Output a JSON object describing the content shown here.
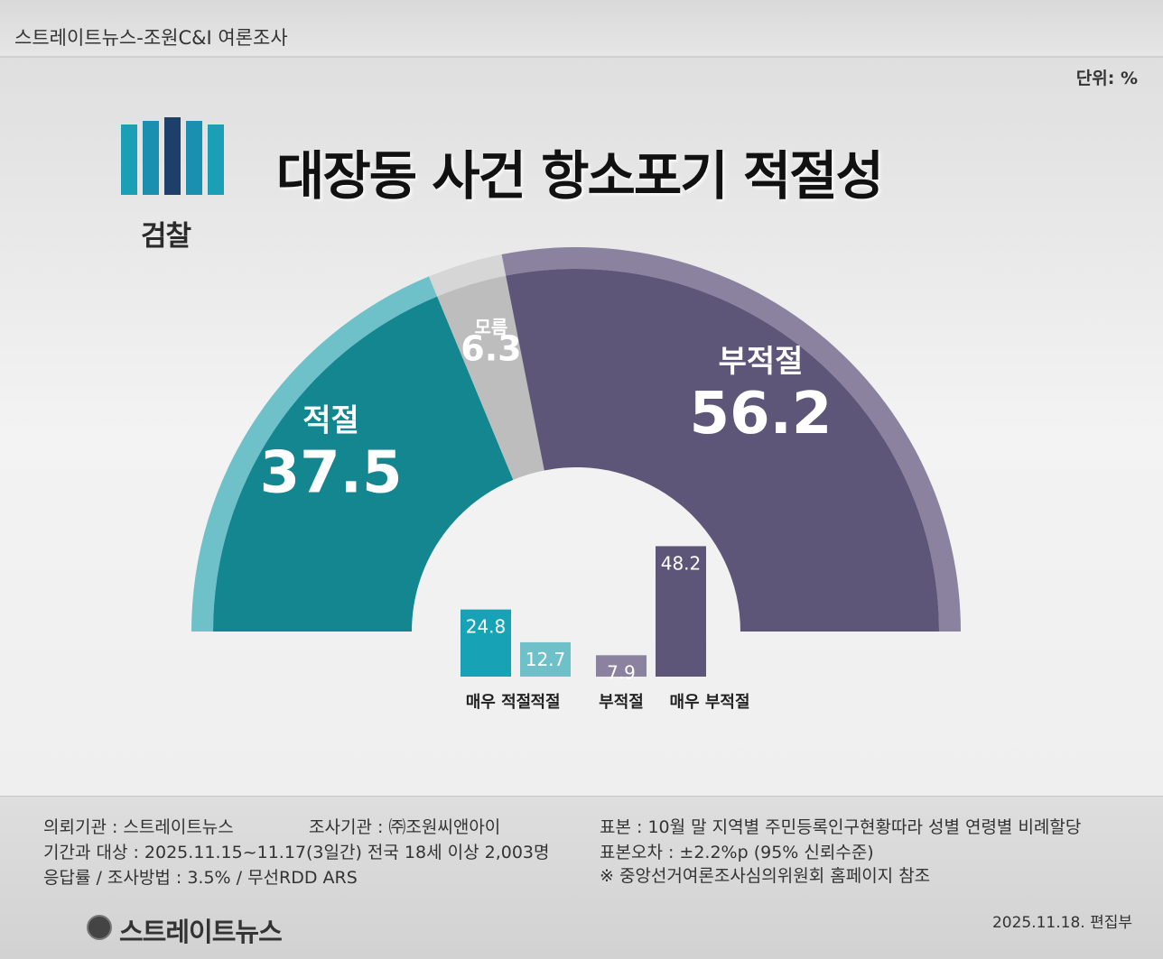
{
  "header": {
    "source": "스트레이트뉴스-조원C&I 여론조사",
    "unit": "단위: %"
  },
  "logo": {
    "text": "검찰"
  },
  "title": "대장동 사건 항소포기 적절성",
  "chart_data": [
    {
      "type": "pie",
      "layout": "half-donut",
      "slices": [
        {
          "label": "적절",
          "value": 37.5,
          "color": "#138690",
          "outer_color": "#6ec1c9"
        },
        {
          "label": "모름",
          "value": 6.3,
          "color": "#bdbdbd",
          "outer_color": "#d6d6d6"
        },
        {
          "label": "부적절",
          "value": 56.2,
          "color": "#5e5678",
          "outer_color": "#8a829f"
        }
      ]
    },
    {
      "type": "bar",
      "categories": [
        "매우 적절",
        "적절",
        "부적절",
        "매우 부적절"
      ],
      "values": [
        24.8,
        12.7,
        7.9,
        48.2
      ],
      "colors": [
        "#17a2b5",
        "#6ec1c9",
        "#8a829f",
        "#5e5678"
      ]
    }
  ],
  "footer": {
    "client": "의뢰기관 : 스트레이트뉴스",
    "agency": "조사기관 : ㈜조원씨앤아이",
    "period": "기간과 대상 : 2025.11.15~11.17(3일간)   전국 18세 이상  2,003명",
    "response": "응답률 / 조사방법 : 3.5% / 무선RDD ARS",
    "sample": "표본 : 10월 말 지역별 주민등록인구현황따라 성별 연령별 비례할당",
    "error": "표본오차 : ±2.2%p (95% 신뢰수준)",
    "note": "※ 중앙선거여론조사심의위원회 홈페이지 참조",
    "brand": "스트레이트뉴스",
    "date": "2025.11.18. 편집부"
  }
}
